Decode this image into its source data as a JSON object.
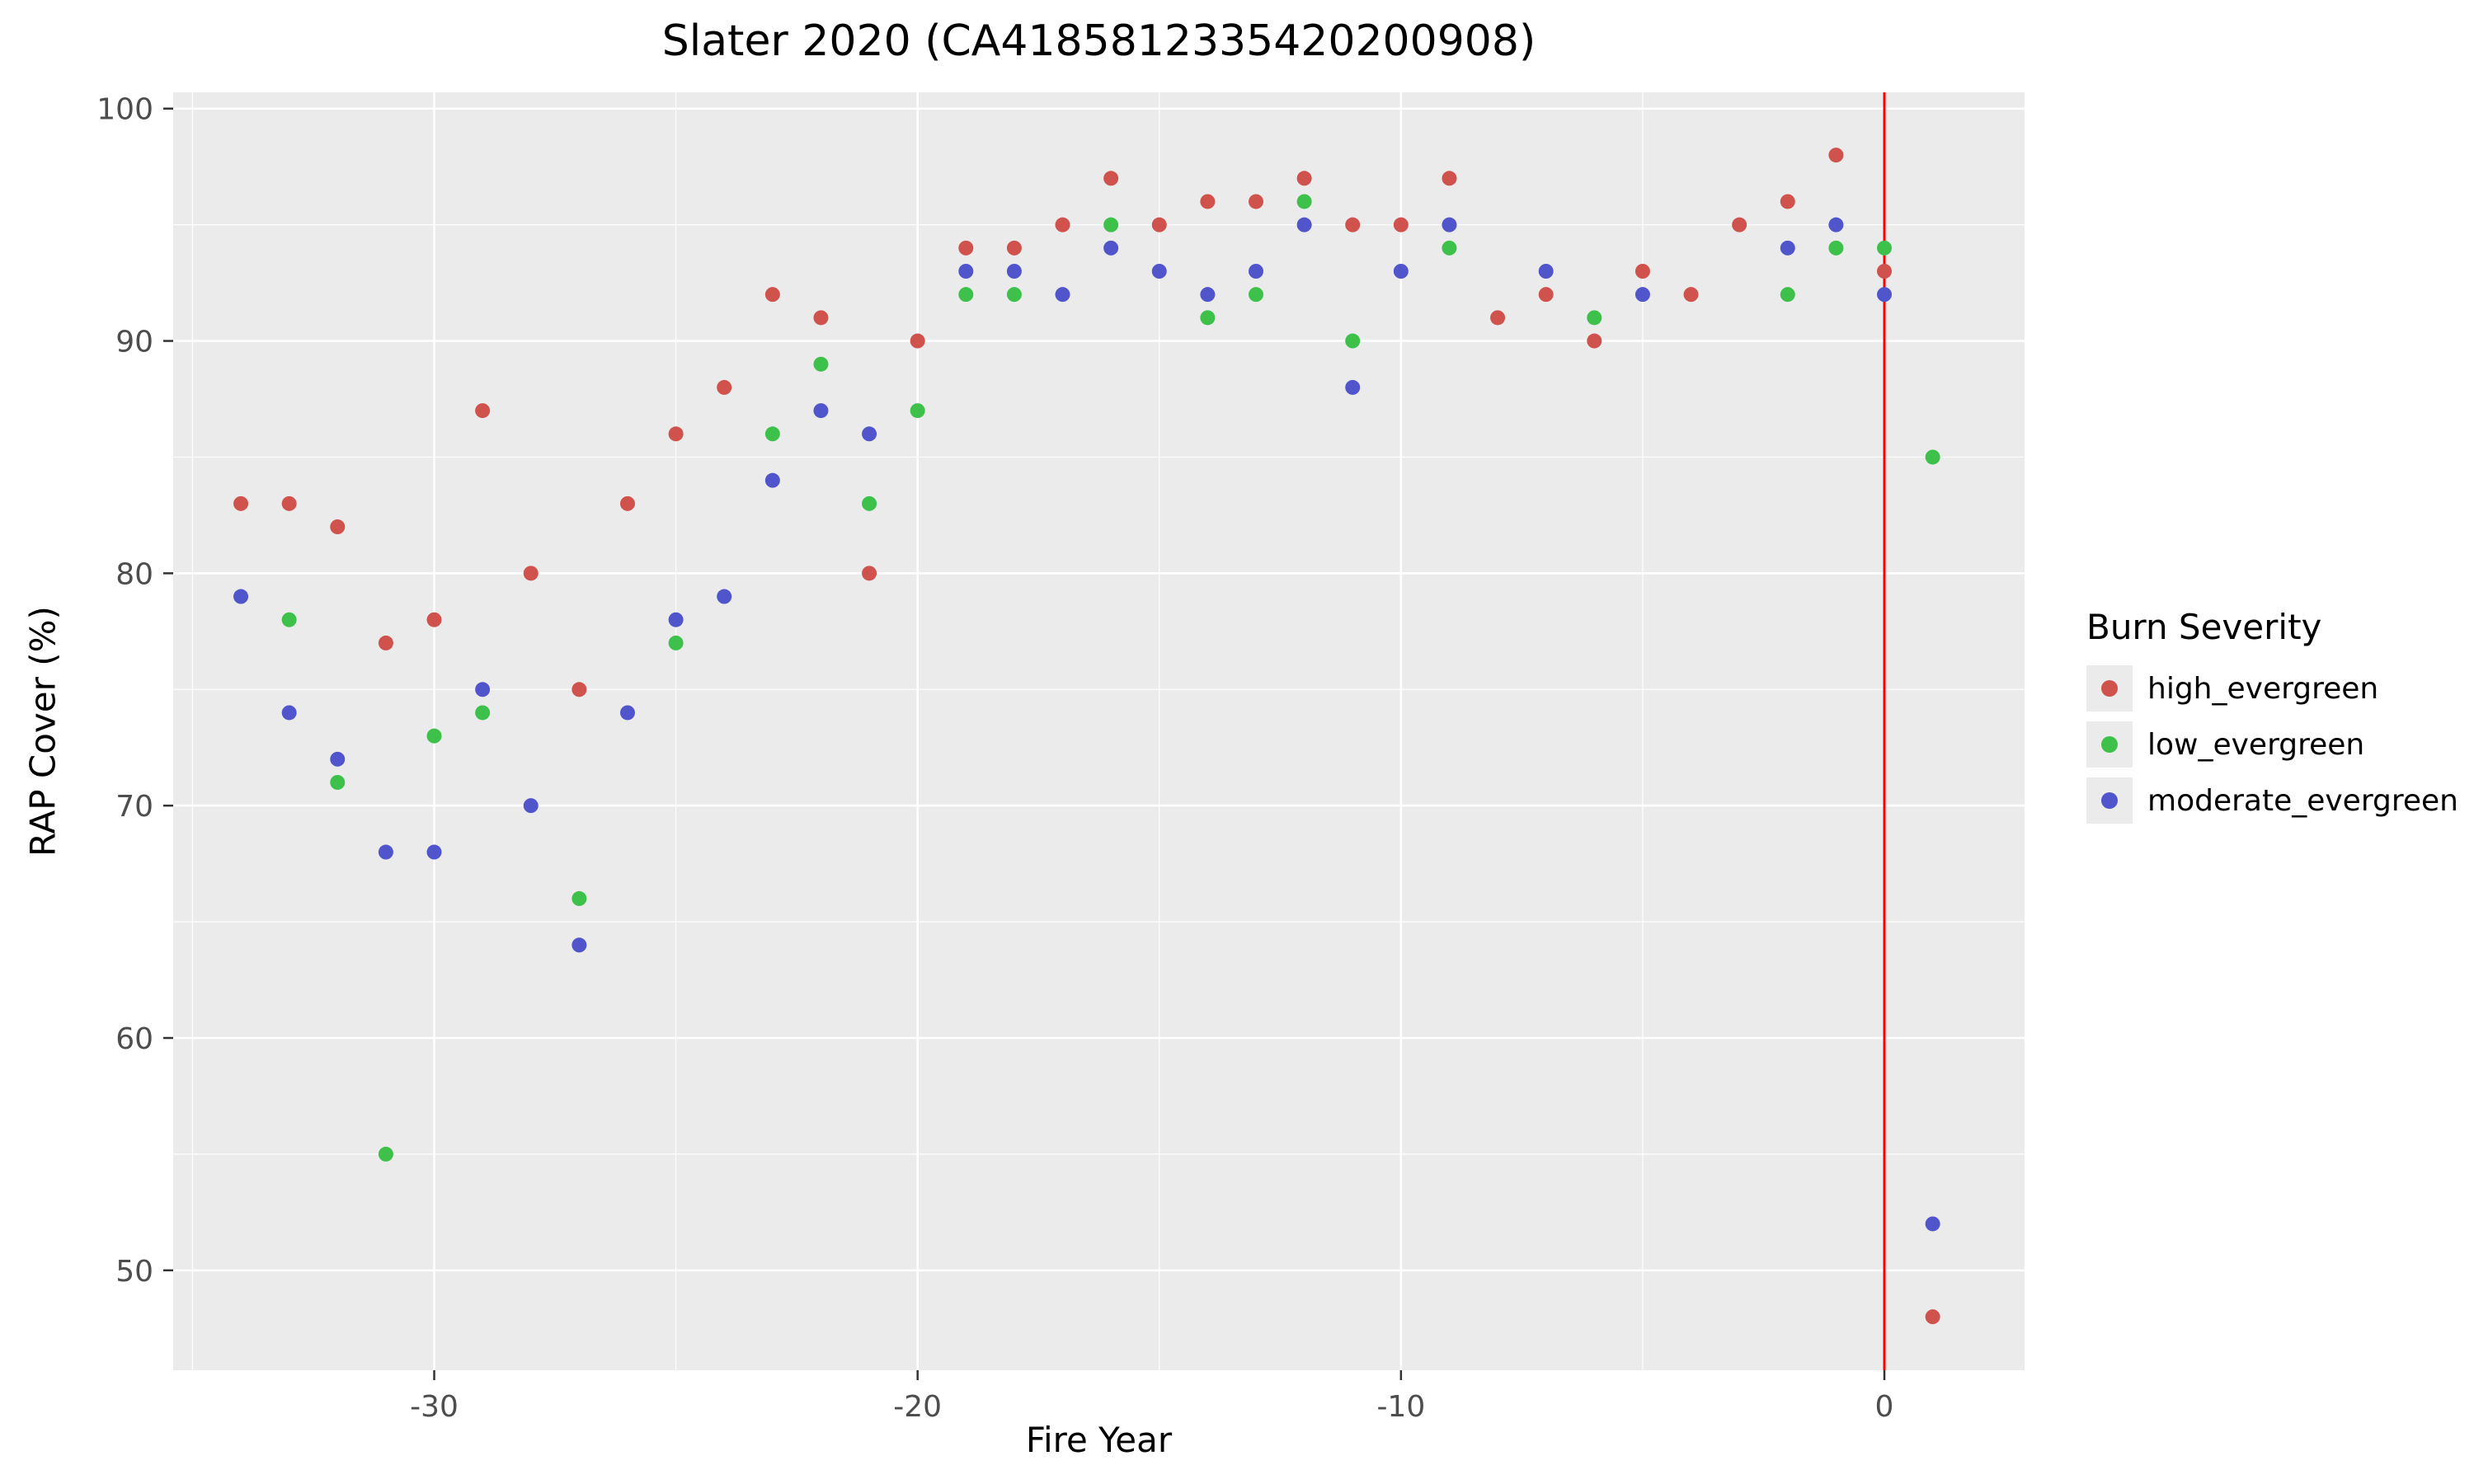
{
  "chart_data": {
    "type": "scatter",
    "title": "Slater 2020 (CA4185812335420200908)",
    "xlabel": "Fire Year",
    "ylabel": "RAP Cover (%)",
    "legend_title": "Burn Severity",
    "xlim": [
      -35.4,
      2.9
    ],
    "ylim": [
      45.7,
      100.7
    ],
    "x_ticks": [
      -30,
      -20,
      -10,
      0
    ],
    "y_ticks": [
      50,
      60,
      70,
      80,
      90,
      100
    ],
    "x_minor_ticks": [
      -35,
      -25,
      -15,
      -5
    ],
    "y_minor_ticks": [
      55,
      65,
      75,
      85,
      95
    ],
    "grid": true,
    "legend_position": "right",
    "panel_background": "#EBEBEB",
    "grid_color": "#FFFFFF",
    "tick_mark_color": "#333333",
    "tick_label_color": "#4D4D4D",
    "legend_key_background": "#EBEBEB",
    "vline": {
      "x": 0,
      "color": "#FF0000"
    },
    "point_radius": 9,
    "series": [
      {
        "name": "high_evergreen",
        "color": "#CF524C",
        "points": [
          [
            -34,
            83
          ],
          [
            -33,
            83
          ],
          [
            -32,
            82
          ],
          [
            -31,
            77
          ],
          [
            -30,
            78
          ],
          [
            -29,
            87
          ],
          [
            -28,
            80
          ],
          [
            -27,
            75
          ],
          [
            -26,
            83
          ],
          [
            -25,
            86
          ],
          [
            -24,
            88
          ],
          [
            -23,
            92
          ],
          [
            -22,
            91
          ],
          [
            -21,
            80
          ],
          [
            -20,
            90
          ],
          [
            -19,
            94
          ],
          [
            -18,
            94
          ],
          [
            -17,
            95
          ],
          [
            -16,
            97
          ],
          [
            -15,
            95
          ],
          [
            -14,
            96
          ],
          [
            -13,
            96
          ],
          [
            -12,
            97
          ],
          [
            -11,
            95
          ],
          [
            -10,
            95
          ],
          [
            -9,
            97
          ],
          [
            -8,
            91
          ],
          [
            -7,
            92
          ],
          [
            -6,
            90
          ],
          [
            -5,
            93
          ],
          [
            -4,
            92
          ],
          [
            -3,
            95
          ],
          [
            -2,
            96
          ],
          [
            -1,
            98
          ],
          [
            0,
            93
          ],
          [
            1,
            48
          ]
        ]
      },
      {
        "name": "low_evergreen",
        "color": "#3EC14B",
        "points": [
          [
            -33,
            78
          ],
          [
            -32,
            71
          ],
          [
            -31,
            55
          ],
          [
            -30,
            73
          ],
          [
            -29,
            74
          ],
          [
            -27,
            66
          ],
          [
            -25,
            77
          ],
          [
            -23,
            86
          ],
          [
            -22,
            89
          ],
          [
            -21,
            83
          ],
          [
            -20,
            87
          ],
          [
            -19,
            92
          ],
          [
            -18,
            92
          ],
          [
            -16,
            95
          ],
          [
            -14,
            91
          ],
          [
            -13,
            92
          ],
          [
            -12,
            96
          ],
          [
            -11,
            90
          ],
          [
            -9,
            94
          ],
          [
            -6,
            91
          ],
          [
            -2,
            92
          ],
          [
            -1,
            94
          ],
          [
            0,
            94
          ],
          [
            1,
            85
          ]
        ]
      },
      {
        "name": "moderate_evergreen",
        "color": "#5055CB",
        "points": [
          [
            -34,
            79
          ],
          [
            -33,
            74
          ],
          [
            -32,
            72
          ],
          [
            -31,
            68
          ],
          [
            -30,
            68
          ],
          [
            -29,
            75
          ],
          [
            -28,
            70
          ],
          [
            -27,
            64
          ],
          [
            -26,
            74
          ],
          [
            -25,
            78
          ],
          [
            -24,
            79
          ],
          [
            -23,
            84
          ],
          [
            -22,
            87
          ],
          [
            -21,
            86
          ],
          [
            -19,
            93
          ],
          [
            -18,
            93
          ],
          [
            -17,
            92
          ],
          [
            -16,
            94
          ],
          [
            -15,
            93
          ],
          [
            -14,
            92
          ],
          [
            -13,
            93
          ],
          [
            -12,
            95
          ],
          [
            -11,
            88
          ],
          [
            -10,
            93
          ],
          [
            -9,
            95
          ],
          [
            -7,
            93
          ],
          [
            -5,
            92
          ],
          [
            -2,
            94
          ],
          [
            -1,
            95
          ],
          [
            0,
            92
          ],
          [
            1,
            52
          ]
        ]
      }
    ]
  }
}
